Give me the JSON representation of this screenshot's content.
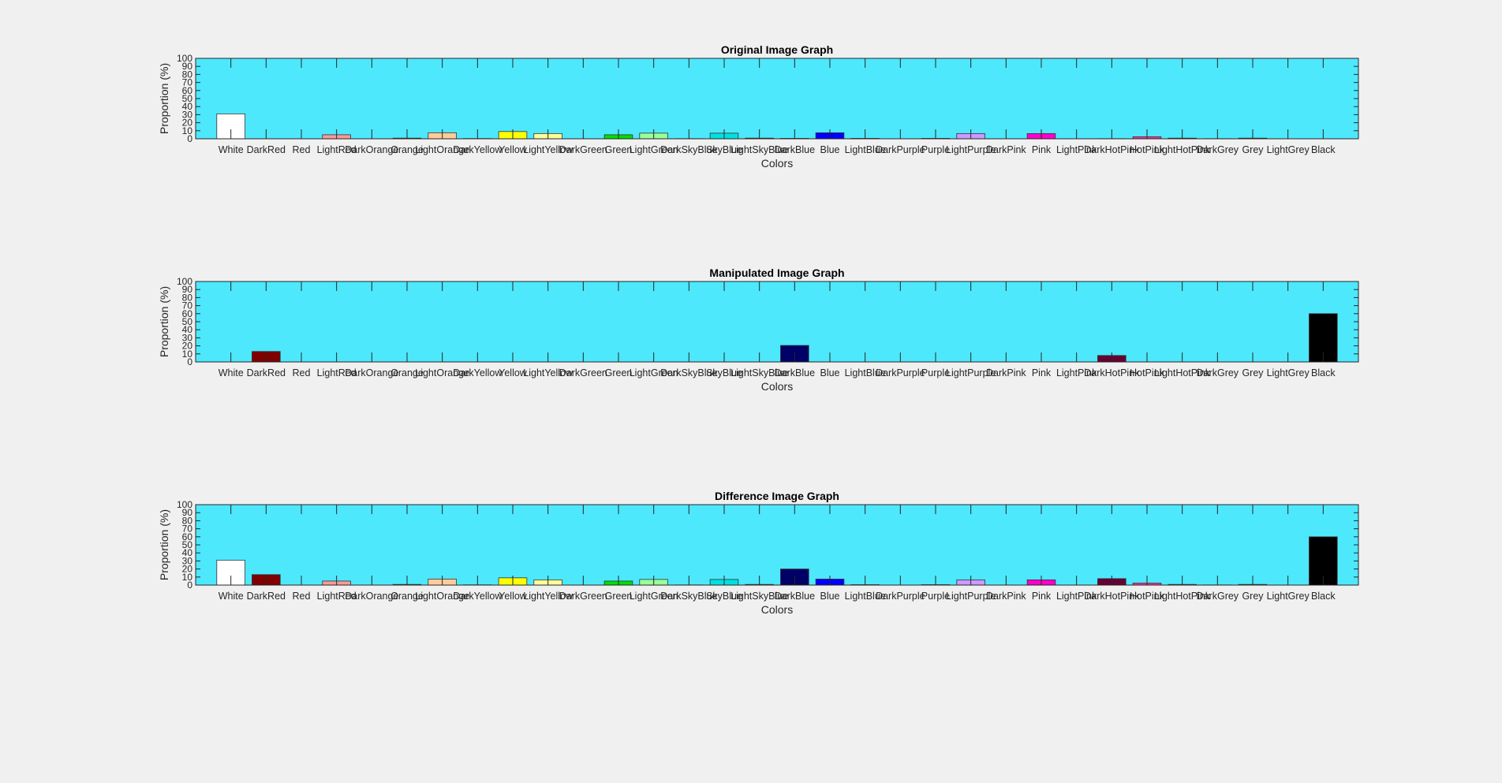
{
  "figure": {
    "background": "#f0f0f0",
    "axes_background": "#4de8fc"
  },
  "chart_data": [
    {
      "type": "bar",
      "title": "Original Image Graph",
      "xlabel": "Colors",
      "ylabel": "Proportion (%)",
      "ylim": [
        0,
        100
      ],
      "yticks": [
        0,
        10,
        20,
        30,
        40,
        50,
        60,
        70,
        80,
        90,
        100
      ],
      "grid": false,
      "categories": [
        "White",
        "DarkRed",
        "Red",
        "LightRed",
        "DarkOrange",
        "Orange",
        "LightOrange",
        "DarkYellow",
        "Yellow",
        "LightYellow",
        "DarkGreen",
        "Green",
        "LightGreen",
        "DarkSkyBlue",
        "SkyBlue",
        "LightSkyBlue",
        "DarkBlue",
        "Blue",
        "LightBlue",
        "DarkPurple",
        "Purple",
        "LightPurple",
        "DarkPink",
        "Pink",
        "LightPink",
        "DarkHotPink",
        "HotPink",
        "LightHotPink",
        "DarkGrey",
        "Grey",
        "LightGrey",
        "Black"
      ],
      "bar_colors": [
        "#ffffff",
        "#800000",
        "#ff0000",
        "#ff9999",
        "#cc5500",
        "#ff8000",
        "#ffcc99",
        "#999900",
        "#ffff00",
        "#ffff99",
        "#006400",
        "#00e000",
        "#99ff99",
        "#0099cc",
        "#00e0e0",
        "#99ffff",
        "#000066",
        "#0000ff",
        "#9999ff",
        "#660066",
        "#cc00cc",
        "#cc99ff",
        "#990066",
        "#ff00cc",
        "#ff99cc",
        "#660033",
        "#ff3399",
        "#ff99bb",
        "#444444",
        "#888888",
        "#cccccc",
        "#000000"
      ],
      "values": [
        31,
        0,
        0,
        5,
        0,
        0.8,
        7.5,
        0.3,
        9,
        6.5,
        0,
        5,
        7,
        0.2,
        7,
        0.8,
        0.5,
        7.5,
        0.5,
        0,
        0.5,
        6.5,
        0,
        6.5,
        0,
        0.2,
        2.5,
        0.8,
        0.2,
        0.8,
        0,
        0
      ]
    },
    {
      "type": "bar",
      "title": "Manipulated Image Graph",
      "xlabel": "Colors",
      "ylabel": "Proportion (%)",
      "ylim": [
        0,
        100
      ],
      "yticks": [
        0,
        10,
        20,
        30,
        40,
        50,
        60,
        70,
        80,
        90,
        100
      ],
      "grid": false,
      "categories": [
        "White",
        "DarkRed",
        "Red",
        "LightRed",
        "DarkOrange",
        "Orange",
        "LightOrange",
        "DarkYellow",
        "Yellow",
        "LightYellow",
        "DarkGreen",
        "Green",
        "LightGreen",
        "DarkSkyBlue",
        "SkyBlue",
        "LightSkyBlue",
        "DarkBlue",
        "Blue",
        "LightBlue",
        "DarkPurple",
        "Purple",
        "LightPurple",
        "DarkPink",
        "Pink",
        "LightPink",
        "DarkHotPink",
        "HotPink",
        "LightHotPink",
        "DarkGrey",
        "Grey",
        "LightGrey",
        "Black"
      ],
      "bar_colors": [
        "#ffffff",
        "#800000",
        "#ff0000",
        "#ff9999",
        "#cc5500",
        "#ff8000",
        "#ffcc99",
        "#999900",
        "#ffff00",
        "#ffff99",
        "#006400",
        "#00e000",
        "#99ff99",
        "#0099cc",
        "#00e0e0",
        "#99ffff",
        "#000066",
        "#0000ff",
        "#9999ff",
        "#660066",
        "#cc00cc",
        "#cc99ff",
        "#990066",
        "#ff00cc",
        "#ff99cc",
        "#660033",
        "#ff3399",
        "#ff99bb",
        "#444444",
        "#888888",
        "#cccccc",
        "#000000"
      ],
      "values": [
        0,
        13,
        0,
        0,
        0,
        0,
        0,
        0,
        0,
        0,
        0,
        0,
        0,
        0,
        0,
        0,
        20.5,
        0,
        0,
        0,
        0,
        0,
        0,
        0,
        0,
        8,
        0,
        0,
        0,
        0,
        0,
        60
      ]
    },
    {
      "type": "bar",
      "title": "Difference Image Graph",
      "xlabel": "Colors",
      "ylabel": "Proportion (%)",
      "ylim": [
        0,
        100
      ],
      "yticks": [
        0,
        10,
        20,
        30,
        40,
        50,
        60,
        70,
        80,
        90,
        100
      ],
      "grid": false,
      "categories": [
        "White",
        "DarkRed",
        "Red",
        "LightRed",
        "DarkOrange",
        "Orange",
        "LightOrange",
        "DarkYellow",
        "Yellow",
        "LightYellow",
        "DarkGreen",
        "Green",
        "LightGreen",
        "DarkSkyBlue",
        "SkyBlue",
        "LightSkyBlue",
        "DarkBlue",
        "Blue",
        "LightBlue",
        "DarkPurple",
        "Purple",
        "LightPurple",
        "DarkPink",
        "Pink",
        "LightPink",
        "DarkHotPink",
        "HotPink",
        "LightHotPink",
        "DarkGrey",
        "Grey",
        "LightGrey",
        "Black"
      ],
      "bar_colors": [
        "#ffffff",
        "#800000",
        "#ff0000",
        "#ff9999",
        "#cc5500",
        "#ff8000",
        "#ffcc99",
        "#999900",
        "#ffff00",
        "#ffff99",
        "#006400",
        "#00e000",
        "#99ff99",
        "#0099cc",
        "#00e0e0",
        "#99ffff",
        "#000066",
        "#0000ff",
        "#9999ff",
        "#660066",
        "#cc00cc",
        "#cc99ff",
        "#990066",
        "#ff00cc",
        "#ff99cc",
        "#660033",
        "#ff3399",
        "#ff99bb",
        "#444444",
        "#888888",
        "#cccccc",
        "#000000"
      ],
      "values": [
        31,
        13,
        0,
        5,
        0,
        0.8,
        7.5,
        0.3,
        9,
        6.5,
        0,
        5,
        7,
        0.2,
        7,
        0.8,
        20,
        7.5,
        0.5,
        0,
        0.5,
        6.5,
        0,
        6.5,
        0,
        8,
        2.5,
        0.8,
        0.2,
        0.8,
        0,
        60
      ]
    }
  ]
}
